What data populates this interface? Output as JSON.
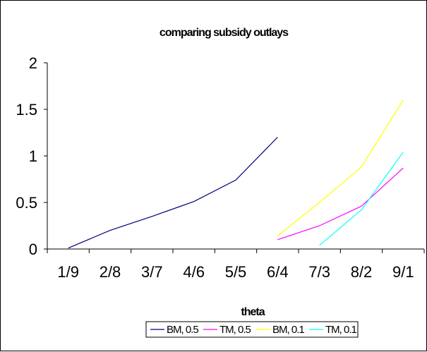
{
  "chart_data": {
    "type": "line",
    "title": "comparing subsidy outlays",
    "xlabel": "theta",
    "ylabel": "",
    "categories": [
      "1/9",
      "2/8",
      "3/7",
      "4/6",
      "5/5",
      "6/4",
      "7/3",
      "8/2",
      "9/1"
    ],
    "ylim": [
      0,
      2
    ],
    "yticks": [
      0,
      0.5,
      1,
      1.5,
      2
    ],
    "ytick_labels": [
      "0",
      "0.5",
      "1",
      "1.5",
      "2"
    ],
    "grid": false,
    "legend_position": "bottom",
    "series": [
      {
        "name": "BM, 0.5",
        "color": "#000080",
        "values": [
          0.01,
          0.2,
          0.35,
          0.51,
          0.74,
          1.2,
          null,
          null,
          null
        ]
      },
      {
        "name": "TM, 0.5",
        "color": "#ff00ff",
        "values": [
          null,
          null,
          null,
          null,
          null,
          0.1,
          0.25,
          0.46,
          0.87
        ]
      },
      {
        "name": "BM, 0.1",
        "color": "#ffff00",
        "values": [
          null,
          null,
          null,
          null,
          null,
          0.14,
          0.5,
          0.88,
          1.6
        ]
      },
      {
        "name": "TM, 0.1",
        "color": "#00ffff",
        "values": [
          null,
          null,
          null,
          null,
          null,
          null,
          0.04,
          0.42,
          1.04
        ]
      }
    ]
  }
}
